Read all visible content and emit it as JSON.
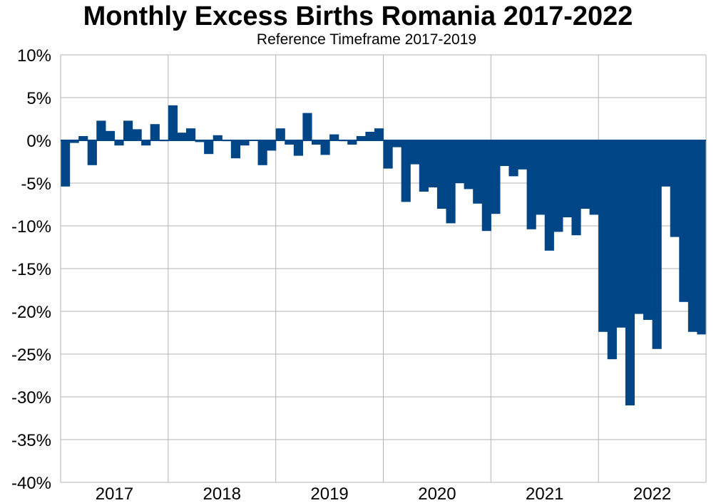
{
  "chart_data": {
    "type": "bar",
    "title": "Monthly Excess Births Romania 2017-2022",
    "subtitle": "Reference Timeframe 2017-2019",
    "xlabel": "",
    "ylabel": "",
    "ylim": [
      -40,
      10
    ],
    "y_ticks": [
      10,
      5,
      0,
      -5,
      -10,
      -15,
      -20,
      -25,
      -30,
      -35,
      -40
    ],
    "y_tick_labels": [
      "10%",
      "5%",
      "0%",
      "-5%",
      "-10%",
      "-15%",
      "-20%",
      "-25%",
      "-30%",
      "-35%",
      "-40%"
    ],
    "x_tick_labels": [
      "2017",
      "2018",
      "2019",
      "2020",
      "2021",
      "2022"
    ],
    "grid": true,
    "color": "#004586",
    "series": [
      {
        "values": [
          -5.4,
          -0.3,
          0.5,
          -2.9,
          2.3,
          1.1,
          -0.6,
          2.3,
          1.3,
          -0.6,
          1.9,
          -0.1,
          4.1,
          0.9,
          1.4,
          -0.2,
          -1.6,
          0.6,
          -0.1,
          -2.1,
          -0.6,
          0.0,
          -2.9,
          -1.2,
          1.4,
          -0.5,
          -1.8,
          3.2,
          -0.5,
          -1.7,
          0.7,
          -0.1,
          -0.5,
          0.5,
          1.0,
          1.4,
          -3.3,
          -0.8,
          -7.2,
          -2.8,
          -6.0,
          -5.5,
          -8.0,
          -9.7,
          -5.0,
          -5.7,
          -7.4,
          -10.6,
          -8.6,
          -3.0,
          -4.2,
          -3.4,
          -10.4,
          -8.7,
          -12.9,
          -10.7,
          -9.0,
          -11.1,
          -8.0,
          -8.7,
          -22.4,
          -25.6,
          -21.9,
          -31.0,
          -20.3,
          -21.0,
          -24.4,
          -5.4,
          -11.3,
          -18.9,
          -22.4,
          -22.7
        ]
      }
    ]
  }
}
